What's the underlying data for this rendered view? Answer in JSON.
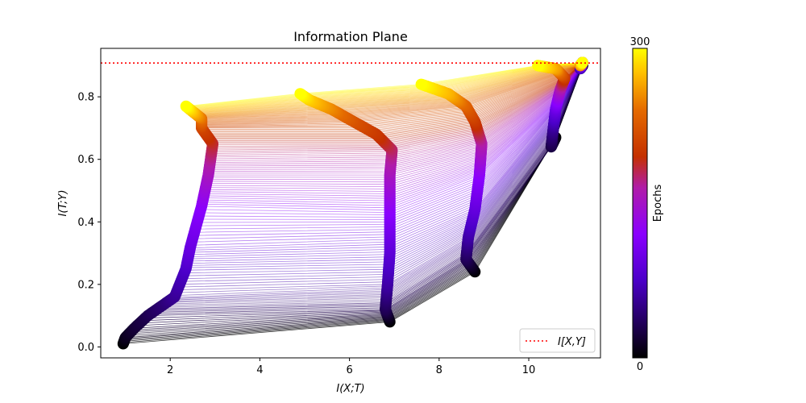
{
  "chart_data": {
    "type": "scatter",
    "title": "Information Plane",
    "xlabel": "I(X;T)",
    "ylabel": "I(T;Y)",
    "xlim": [
      0.45,
      11.6
    ],
    "ylim": [
      -0.035,
      0.955
    ],
    "xticks": [
      2,
      4,
      6,
      8,
      10
    ],
    "yticks": [
      0.0,
      0.2,
      0.4,
      0.6,
      0.8
    ],
    "reference_line": {
      "label": "I[X,Y]",
      "y": 0.908,
      "color": "#ff0000",
      "style": "dotted"
    },
    "legend": {
      "position": "lower-right",
      "entries": [
        "I[X,Y]"
      ]
    },
    "colorbar": {
      "label": "Epochs",
      "min": 0,
      "max": 300,
      "colormap": "gnuplot"
    },
    "epochs": 300,
    "series": [
      {
        "path": [
          [
            0.95,
            0.01,
            0
          ],
          [
            1.0,
            0.03,
            10
          ],
          [
            1.2,
            0.06,
            20
          ],
          [
            1.5,
            0.1,
            30
          ],
          [
            1.9,
            0.14,
            45
          ],
          [
            2.1,
            0.16,
            55
          ],
          [
            2.35,
            0.25,
            75
          ],
          [
            2.45,
            0.32,
            95
          ],
          [
            2.7,
            0.45,
            120
          ],
          [
            2.85,
            0.55,
            150
          ],
          [
            2.95,
            0.65,
            185
          ],
          [
            2.7,
            0.7,
            210
          ],
          [
            2.7,
            0.73,
            240
          ],
          [
            2.35,
            0.77,
            300
          ]
        ]
      },
      {
        "path": [
          [
            6.9,
            0.08,
            0
          ],
          [
            6.8,
            0.12,
            30
          ],
          [
            6.85,
            0.2,
            60
          ],
          [
            6.9,
            0.3,
            85
          ],
          [
            6.9,
            0.4,
            110
          ],
          [
            6.9,
            0.55,
            150
          ],
          [
            6.95,
            0.63,
            175
          ],
          [
            6.6,
            0.68,
            200
          ],
          [
            6.1,
            0.72,
            220
          ],
          [
            5.6,
            0.76,
            250
          ],
          [
            5.1,
            0.79,
            280
          ],
          [
            4.9,
            0.81,
            300
          ]
        ]
      },
      {
        "path": [
          [
            8.8,
            0.24,
            0
          ],
          [
            8.6,
            0.28,
            30
          ],
          [
            8.65,
            0.35,
            60
          ],
          [
            8.8,
            0.44,
            90
          ],
          [
            8.9,
            0.55,
            120
          ],
          [
            8.95,
            0.65,
            160
          ],
          [
            8.8,
            0.72,
            200
          ],
          [
            8.6,
            0.77,
            230
          ],
          [
            8.2,
            0.81,
            270
          ],
          [
            7.6,
            0.84,
            300
          ]
        ]
      },
      {
        "path": [
          [
            10.6,
            0.67,
            0
          ],
          [
            10.5,
            0.64,
            25
          ],
          [
            10.55,
            0.7,
            55
          ],
          [
            10.6,
            0.76,
            95
          ],
          [
            10.7,
            0.82,
            150
          ],
          [
            10.8,
            0.86,
            200
          ],
          [
            10.6,
            0.89,
            260
          ],
          [
            10.2,
            0.9,
            300
          ]
        ]
      },
      {
        "path": [
          [
            11.2,
            0.9,
            0
          ],
          [
            11.15,
            0.89,
            60
          ],
          [
            11.2,
            0.91,
            150
          ],
          [
            11.15,
            0.9,
            250
          ],
          [
            11.2,
            0.91,
            300
          ]
        ]
      }
    ]
  }
}
